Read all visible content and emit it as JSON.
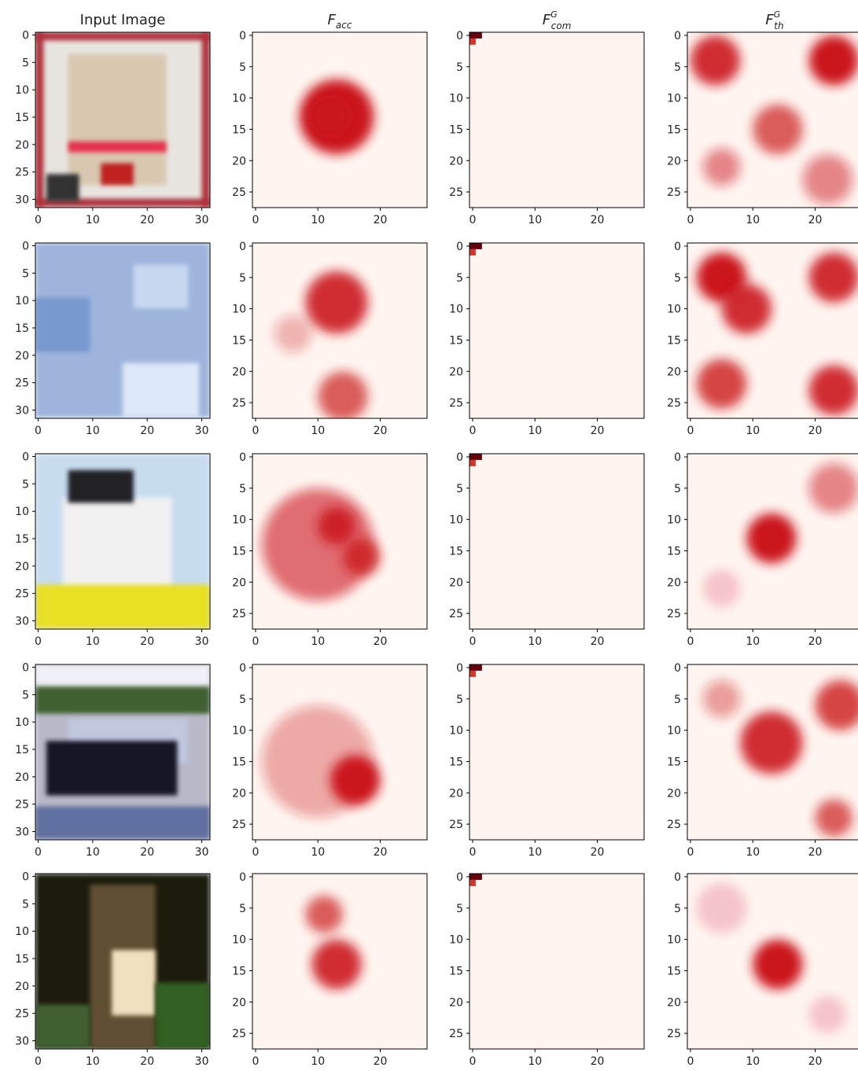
{
  "columns": [
    {
      "title": "Input Image",
      "xlim": [
        -0.5,
        31.5
      ],
      "ylim": [
        -0.5,
        31.5
      ],
      "xticks": [
        0,
        10,
        20,
        30
      ],
      "yticks": [
        0,
        5,
        10,
        15,
        20,
        25,
        30
      ]
    },
    {
      "title": {
        "base": "F",
        "sub": "acc"
      },
      "xlim": [
        -0.5,
        27.5
      ],
      "ylim": [
        -0.5,
        27.5
      ],
      "xticks": [
        0,
        10,
        20
      ],
      "yticks": [
        0,
        5,
        10,
        15,
        20,
        25
      ]
    },
    {
      "title": {
        "base": "F",
        "sup": "G",
        "sub": "com"
      },
      "xlim": [
        -0.5,
        27.5
      ],
      "ylim": [
        -0.5,
        27.5
      ],
      "xticks": [
        0,
        10,
        20
      ],
      "yticks": [
        0,
        5,
        10,
        15,
        20,
        25
      ]
    },
    {
      "title": {
        "base": "F",
        "sup": "G",
        "sub": "th"
      },
      "xlim": [
        -0.5,
        27.5
      ],
      "ylim": [
        -0.5,
        27.5
      ],
      "xticks": [
        0,
        10,
        20
      ],
      "yticks": [
        0,
        5,
        10,
        15,
        20,
        25
      ]
    }
  ]
}
